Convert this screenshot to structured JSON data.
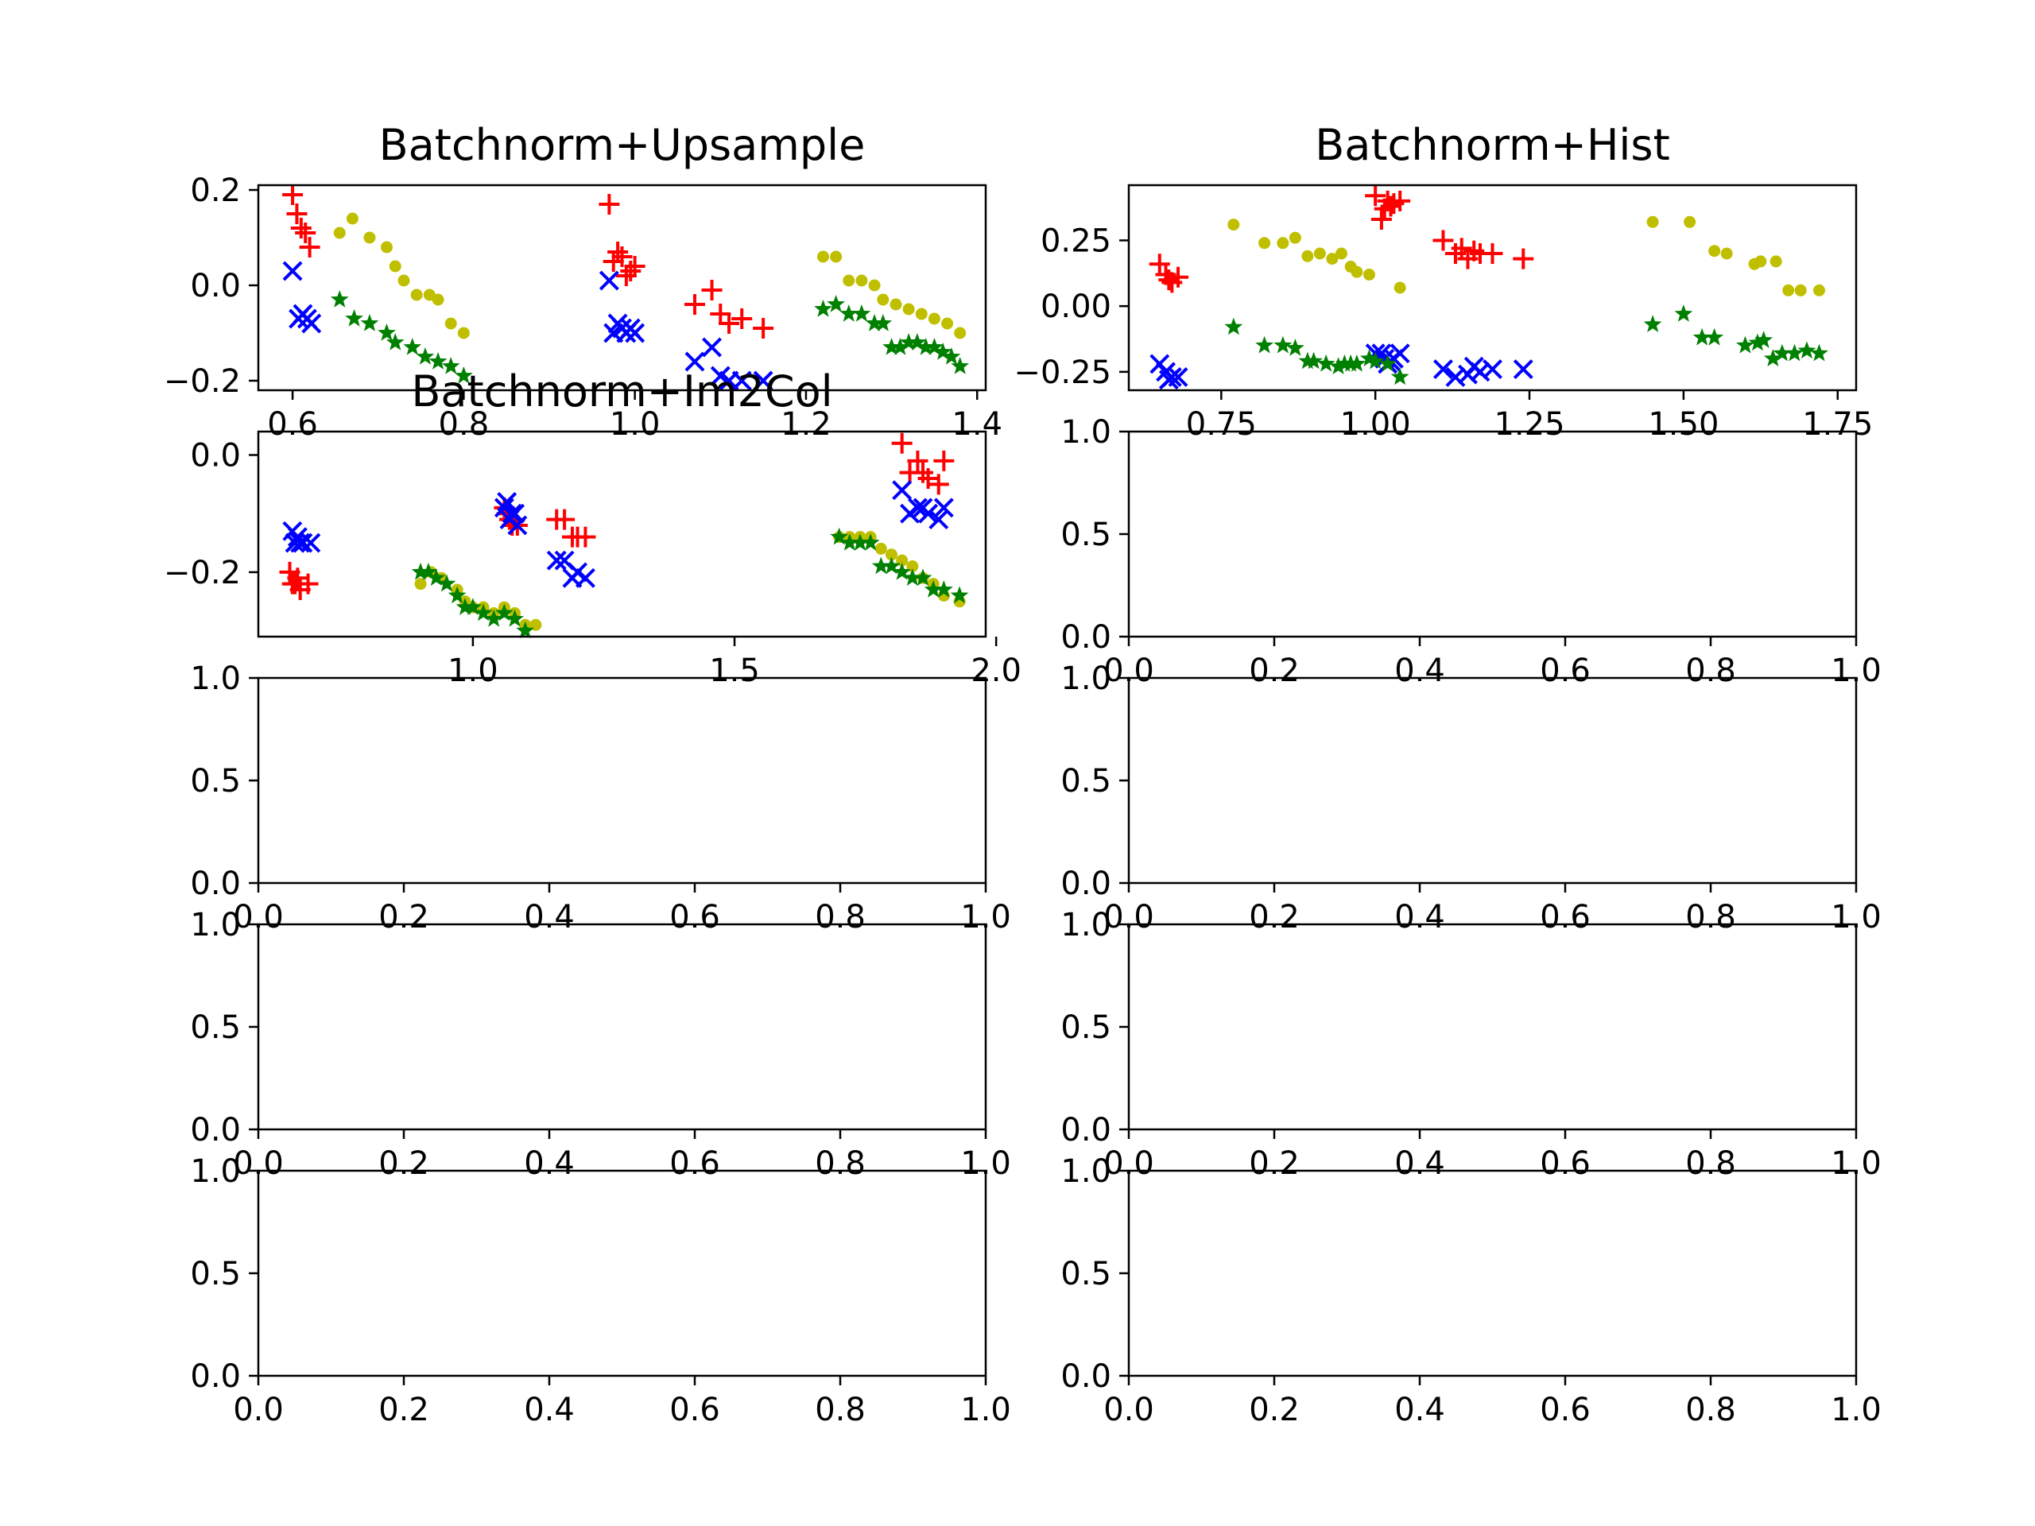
{
  "figure": {
    "background": "#ffffff"
  },
  "series_styles": [
    {
      "marker": "plus",
      "color": "#ff0000"
    },
    {
      "marker": "x",
      "color": "#0000ff"
    },
    {
      "marker": "dot",
      "color": "#bfbf00"
    },
    {
      "marker": "star",
      "color": "#008000"
    }
  ],
  "chart_data": [
    {
      "type": "scatter",
      "title": "Batchnorm+Upsample",
      "xlim": [
        0.56,
        1.41
      ],
      "ylim": [
        -0.22,
        0.21
      ],
      "xticks": [
        0.6,
        0.8,
        1.0,
        1.2,
        1.4
      ],
      "xtick_labels": [
        "0.6",
        "0.8",
        "1.0",
        "1.2",
        "1.4"
      ],
      "yticks": [
        -0.2,
        0.0,
        0.2
      ],
      "ytick_labels": [
        "−0.2",
        "0.0",
        "0.2"
      ],
      "series": [
        {
          "x": [
            0.6,
            0.605,
            0.61,
            0.615,
            0.62,
            0.97,
            0.975,
            0.98,
            0.985,
            0.99,
            0.995,
            1.0,
            1.07,
            1.09,
            1.1,
            1.11,
            1.125,
            1.15
          ],
          "y": [
            0.19,
            0.15,
            0.12,
            0.11,
            0.08,
            0.17,
            0.05,
            0.07,
            0.06,
            0.02,
            0.03,
            0.04,
            -0.04,
            -0.01,
            -0.06,
            -0.08,
            -0.07,
            -0.09
          ]
        },
        {
          "x": [
            0.6,
            0.607,
            0.612,
            0.617,
            0.622,
            0.97,
            0.975,
            0.98,
            0.985,
            0.99,
            0.995,
            1.0,
            1.07,
            1.09,
            1.1,
            1.11,
            1.125,
            1.15
          ],
          "y": [
            0.03,
            -0.07,
            -0.06,
            -0.07,
            -0.08,
            0.01,
            -0.1,
            -0.08,
            -0.09,
            -0.1,
            -0.09,
            -0.1,
            -0.16,
            -0.13,
            -0.19,
            -0.2,
            -0.2,
            -0.2
          ]
        },
        {
          "x": [
            0.655,
            0.67,
            0.69,
            0.71,
            0.72,
            0.73,
            0.745,
            0.76,
            0.77,
            0.785,
            0.8,
            1.22,
            1.235,
            1.25,
            1.265,
            1.28,
            1.29,
            1.305,
            1.32,
            1.335,
            1.35,
            1.365,
            1.38
          ],
          "y": [
            0.11,
            0.14,
            0.1,
            0.08,
            0.04,
            0.01,
            -0.02,
            -0.02,
            -0.03,
            -0.08,
            -0.1,
            0.06,
            0.06,
            0.01,
            0.01,
            0.0,
            -0.03,
            -0.04,
            -0.05,
            -0.06,
            -0.07,
            -0.08,
            -0.1
          ]
        },
        {
          "x": [
            0.655,
            0.672,
            0.69,
            0.71,
            0.72,
            0.74,
            0.755,
            0.77,
            0.785,
            0.8,
            1.22,
            1.235,
            1.25,
            1.265,
            1.28,
            1.29,
            1.3,
            1.31,
            1.32,
            1.33,
            1.34,
            1.35,
            1.36,
            1.37,
            1.38
          ],
          "y": [
            -0.03,
            -0.07,
            -0.08,
            -0.1,
            -0.12,
            -0.13,
            -0.15,
            -0.16,
            -0.17,
            -0.19,
            -0.05,
            -0.04,
            -0.06,
            -0.06,
            -0.08,
            -0.08,
            -0.13,
            -0.13,
            -0.12,
            -0.12,
            -0.13,
            -0.13,
            -0.14,
            -0.15,
            -0.17
          ]
        }
      ]
    },
    {
      "type": "scatter",
      "title": "Batchnorm+Hist",
      "xlim": [
        0.6,
        1.78
      ],
      "ylim": [
        -0.32,
        0.46
      ],
      "xticks": [
        0.75,
        1.0,
        1.25,
        1.5,
        1.75
      ],
      "xtick_labels": [
        "0.75",
        "1.00",
        "1.25",
        "1.50",
        "1.75"
      ],
      "yticks": [
        -0.25,
        0.0,
        0.25
      ],
      "ytick_labels": [
        "−0.25",
        "0.00",
        "0.25"
      ],
      "series": [
        {
          "x": [
            0.65,
            0.66,
            0.665,
            0.67,
            0.68,
            1.0,
            1.01,
            1.015,
            1.02,
            1.025,
            1.03,
            1.04,
            1.11,
            1.13,
            1.14,
            1.15,
            1.16,
            1.17,
            1.19,
            1.24
          ],
          "y": [
            0.16,
            0.12,
            0.1,
            0.09,
            0.11,
            0.42,
            0.33,
            0.37,
            0.4,
            0.38,
            0.39,
            0.4,
            0.25,
            0.2,
            0.22,
            0.18,
            0.21,
            0.2,
            0.2,
            0.18
          ]
        },
        {
          "x": [
            0.65,
            0.66,
            0.665,
            0.67,
            0.68,
            1.0,
            1.01,
            1.015,
            1.02,
            1.025,
            1.03,
            1.04,
            1.11,
            1.13,
            1.15,
            1.16,
            1.17,
            1.19,
            1.24
          ],
          "y": [
            -0.22,
            -0.25,
            -0.28,
            -0.27,
            -0.27,
            -0.18,
            -0.18,
            -0.2,
            -0.22,
            -0.21,
            -0.2,
            -0.18,
            -0.24,
            -0.27,
            -0.26,
            -0.23,
            -0.25,
            -0.24,
            -0.24
          ]
        },
        {
          "x": [
            0.77,
            0.82,
            0.85,
            0.87,
            0.89,
            0.91,
            0.93,
            0.945,
            0.96,
            0.97,
            0.99,
            1.04,
            1.45,
            1.51,
            1.55,
            1.57,
            1.615,
            1.625,
            1.65,
            1.67,
            1.69,
            1.72
          ],
          "y": [
            0.31,
            0.24,
            0.24,
            0.26,
            0.19,
            0.2,
            0.18,
            0.2,
            0.15,
            0.13,
            0.12,
            0.07,
            0.32,
            0.32,
            0.21,
            0.2,
            0.16,
            0.17,
            0.17,
            0.06,
            0.06,
            0.06
          ]
        },
        {
          "x": [
            0.77,
            0.82,
            0.85,
            0.87,
            0.89,
            0.9,
            0.92,
            0.94,
            0.95,
            0.96,
            0.97,
            0.99,
            1.0,
            1.02,
            1.04,
            1.45,
            1.5,
            1.53,
            1.55,
            1.6,
            1.62,
            1.63,
            1.645,
            1.66,
            1.68,
            1.7,
            1.72
          ],
          "y": [
            -0.08,
            -0.15,
            -0.15,
            -0.16,
            -0.21,
            -0.21,
            -0.22,
            -0.23,
            -0.22,
            -0.22,
            -0.22,
            -0.2,
            -0.21,
            -0.22,
            -0.27,
            -0.07,
            -0.03,
            -0.12,
            -0.12,
            -0.15,
            -0.14,
            -0.13,
            -0.2,
            -0.18,
            -0.18,
            -0.17,
            -0.18
          ]
        }
      ]
    },
    {
      "type": "scatter",
      "title": "Batchnorm+Im2Col",
      "xlim": [
        0.59,
        1.98
      ],
      "ylim": [
        -0.31,
        0.04
      ],
      "xticks": [
        1.0,
        1.5,
        2.0
      ],
      "xtick_labels": [
        "1.0",
        "1.5",
        "2.0"
      ],
      "yticks": [
        -0.2,
        0.0
      ],
      "ytick_labels": [
        "−0.2",
        "0.0"
      ],
      "series": [
        {
          "x": [
            0.65,
            0.655,
            0.66,
            0.665,
            0.67,
            0.685,
            1.06,
            1.065,
            1.07,
            1.075,
            1.08,
            1.085,
            1.16,
            1.175,
            1.19,
            1.2,
            1.215,
            1.82,
            1.835,
            1.85,
            1.86,
            1.87,
            1.89,
            1.9
          ],
          "y": [
            -0.2,
            -0.22,
            -0.22,
            -0.21,
            -0.23,
            -0.22,
            -0.09,
            -0.1,
            -0.11,
            -0.12,
            -0.11,
            -0.12,
            -0.11,
            -0.11,
            -0.14,
            -0.14,
            -0.14,
            0.02,
            -0.03,
            -0.01,
            -0.03,
            -0.04,
            -0.05,
            -0.01
          ]
        },
        {
          "x": [
            0.655,
            0.66,
            0.665,
            0.67,
            0.675,
            0.69,
            1.06,
            1.065,
            1.07,
            1.075,
            1.08,
            1.085,
            1.16,
            1.175,
            1.19,
            1.2,
            1.215,
            1.82,
            1.835,
            1.85,
            1.86,
            1.87,
            1.89,
            1.9
          ],
          "y": [
            -0.13,
            -0.15,
            -0.14,
            -0.15,
            -0.15,
            -0.15,
            -0.09,
            -0.08,
            -0.11,
            -0.1,
            -0.1,
            -0.12,
            -0.18,
            -0.18,
            -0.21,
            -0.2,
            -0.21,
            -0.06,
            -0.1,
            -0.09,
            -0.09,
            -0.1,
            -0.11,
            -0.09
          ]
        },
        {
          "x": [
            0.9,
            0.92,
            0.94,
            0.97,
            0.985,
            1.0,
            1.02,
            1.04,
            1.06,
            1.08,
            1.1,
            1.12,
            1.7,
            1.72,
            1.74,
            1.76,
            1.78,
            1.8,
            1.82,
            1.84,
            1.86,
            1.88,
            1.9,
            1.93
          ],
          "y": [
            -0.22,
            -0.2,
            -0.21,
            -0.23,
            -0.25,
            -0.26,
            -0.26,
            -0.27,
            -0.26,
            -0.27,
            -0.29,
            -0.29,
            -0.14,
            -0.14,
            -0.14,
            -0.14,
            -0.16,
            -0.17,
            -0.18,
            -0.19,
            -0.21,
            -0.22,
            -0.24,
            -0.25
          ]
        },
        {
          "x": [
            0.9,
            0.915,
            0.93,
            0.95,
            0.97,
            0.985,
            1.0,
            1.02,
            1.04,
            1.06,
            1.08,
            1.1,
            1.7,
            1.72,
            1.74,
            1.76,
            1.78,
            1.8,
            1.82,
            1.84,
            1.86,
            1.88,
            1.9,
            1.93
          ],
          "y": [
            -0.2,
            -0.2,
            -0.21,
            -0.22,
            -0.24,
            -0.26,
            -0.26,
            -0.27,
            -0.28,
            -0.27,
            -0.28,
            -0.3,
            -0.14,
            -0.15,
            -0.15,
            -0.15,
            -0.19,
            -0.19,
            -0.2,
            -0.21,
            -0.21,
            -0.23,
            -0.23,
            -0.24
          ]
        }
      ]
    },
    {
      "type": "scatter",
      "title": "",
      "xlim": [
        0,
        1
      ],
      "ylim": [
        0,
        1
      ],
      "xticks": [
        0,
        0.2,
        0.4,
        0.6,
        0.8,
        1.0
      ],
      "xtick_labels": [
        "0.0",
        "0.2",
        "0.4",
        "0.6",
        "0.8",
        "1.0"
      ],
      "yticks": [
        0,
        0.5,
        1.0
      ],
      "ytick_labels": [
        "0.0",
        "0.5",
        "1.0"
      ],
      "series": []
    },
    {
      "type": "scatter",
      "title": "",
      "xlim": [
        0,
        1
      ],
      "ylim": [
        0,
        1
      ],
      "xticks": [
        0,
        0.2,
        0.4,
        0.6,
        0.8,
        1.0
      ],
      "xtick_labels": [
        "0.0",
        "0.2",
        "0.4",
        "0.6",
        "0.8",
        "1.0"
      ],
      "yticks": [
        0,
        0.5,
        1.0
      ],
      "ytick_labels": [
        "0.0",
        "0.5",
        "1.0"
      ],
      "series": []
    },
    {
      "type": "scatter",
      "title": "",
      "xlim": [
        0,
        1
      ],
      "ylim": [
        0,
        1
      ],
      "xticks": [
        0,
        0.2,
        0.4,
        0.6,
        0.8,
        1.0
      ],
      "xtick_labels": [
        "0.0",
        "0.2",
        "0.4",
        "0.6",
        "0.8",
        "1.0"
      ],
      "yticks": [
        0,
        0.5,
        1.0
      ],
      "ytick_labels": [
        "0.0",
        "0.5",
        "1.0"
      ],
      "series": []
    },
    {
      "type": "scatter",
      "title": "",
      "xlim": [
        0,
        1
      ],
      "ylim": [
        0,
        1
      ],
      "xticks": [
        0,
        0.2,
        0.4,
        0.6,
        0.8,
        1.0
      ],
      "xtick_labels": [
        "0.0",
        "0.2",
        "0.4",
        "0.6",
        "0.8",
        "1.0"
      ],
      "yticks": [
        0,
        0.5,
        1.0
      ],
      "ytick_labels": [
        "0.0",
        "0.5",
        "1.0"
      ],
      "series": []
    },
    {
      "type": "scatter",
      "title": "",
      "xlim": [
        0,
        1
      ],
      "ylim": [
        0,
        1
      ],
      "xticks": [
        0,
        0.2,
        0.4,
        0.6,
        0.8,
        1.0
      ],
      "xtick_labels": [
        "0.0",
        "0.2",
        "0.4",
        "0.6",
        "0.8",
        "1.0"
      ],
      "yticks": [
        0,
        0.5,
        1.0
      ],
      "ytick_labels": [
        "0.0",
        "0.5",
        "1.0"
      ],
      "series": []
    },
    {
      "type": "scatter",
      "title": "",
      "xlim": [
        0,
        1
      ],
      "ylim": [
        0,
        1
      ],
      "xticks": [
        0,
        0.2,
        0.4,
        0.6,
        0.8,
        1.0
      ],
      "xtick_labels": [
        "0.0",
        "0.2",
        "0.4",
        "0.6",
        "0.8",
        "1.0"
      ],
      "yticks": [
        0,
        0.5,
        1.0
      ],
      "ytick_labels": [
        "0.0",
        "0.5",
        "1.0"
      ],
      "series": []
    },
    {
      "type": "scatter",
      "title": "",
      "xlim": [
        0,
        1
      ],
      "ylim": [
        0,
        1
      ],
      "xticks": [
        0,
        0.2,
        0.4,
        0.6,
        0.8,
        1.0
      ],
      "xtick_labels": [
        "0.0",
        "0.2",
        "0.4",
        "0.6",
        "0.8",
        "1.0"
      ],
      "yticks": [
        0,
        0.5,
        1.0
      ],
      "ytick_labels": [
        "0.0",
        "0.5",
        "1.0"
      ],
      "series": []
    }
  ]
}
